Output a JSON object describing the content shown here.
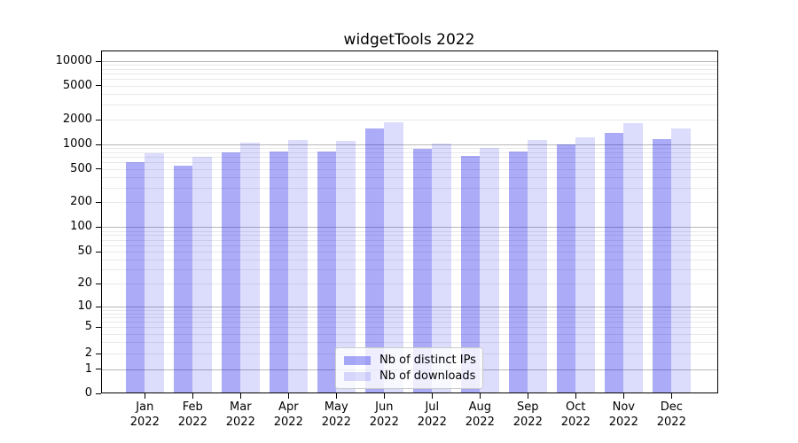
{
  "chart_data": {
    "type": "bar",
    "title": "widgetTools 2022",
    "yscale": "symlog",
    "grid": {
      "major_color": "#b8b8b8",
      "minor_color": "#e9e9e9"
    },
    "categories": [
      "Jan",
      "Feb",
      "Mar",
      "Apr",
      "May",
      "Jun",
      "Jul",
      "Aug",
      "Sep",
      "Oct",
      "Nov",
      "Dec"
    ],
    "category_year": "2022",
    "yticks": [
      0,
      1,
      2,
      5,
      10,
      20,
      50,
      100,
      200,
      500,
      1000,
      2000,
      5000,
      10000
    ],
    "ylim": [
      0,
      13000
    ],
    "grid_on": true,
    "legend_position": "lower-center-inside",
    "series": [
      {
        "name": "Nb of distinct IPs",
        "color": "rgba(10,10,232,0.34)",
        "values": [
          600,
          550,
          800,
          820,
          830,
          1570,
          880,
          730,
          830,
          1000,
          1390,
          1180
        ]
      },
      {
        "name": "Nb of downloads",
        "color": "rgba(10,10,232,0.14)",
        "values": [
          790,
          700,
          1060,
          1140,
          1100,
          1850,
          1020,
          900,
          1140,
          1240,
          1800,
          1570
        ]
      }
    ]
  }
}
